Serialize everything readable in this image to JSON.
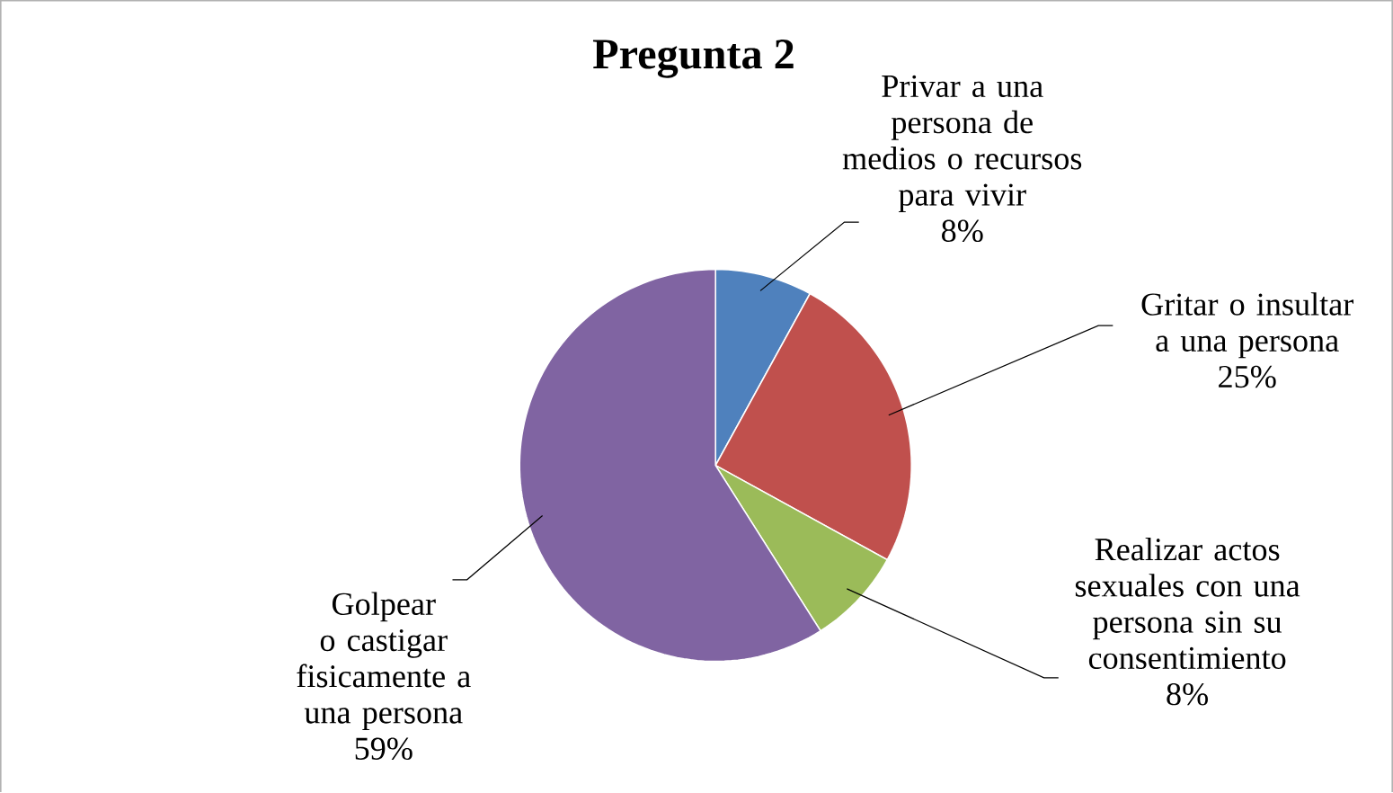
{
  "chart_data": {
    "type": "pie",
    "title": "Pregunta 2",
    "categories": [
      "Privar a una persona de medios o recursos para vivir",
      "Gritar o insultar a una persona",
      "Realizar actos sexuales con una persona sin su consentimiento",
      "Golpear o castigar fisicamente a una persona"
    ],
    "values": [
      8,
      25,
      8,
      59
    ],
    "colors": [
      "#4f81bd",
      "#c0504d",
      "#9bbb59",
      "#8064a2"
    ],
    "value_labels": [
      "8%",
      "25%",
      "8%",
      "59%"
    ]
  }
}
